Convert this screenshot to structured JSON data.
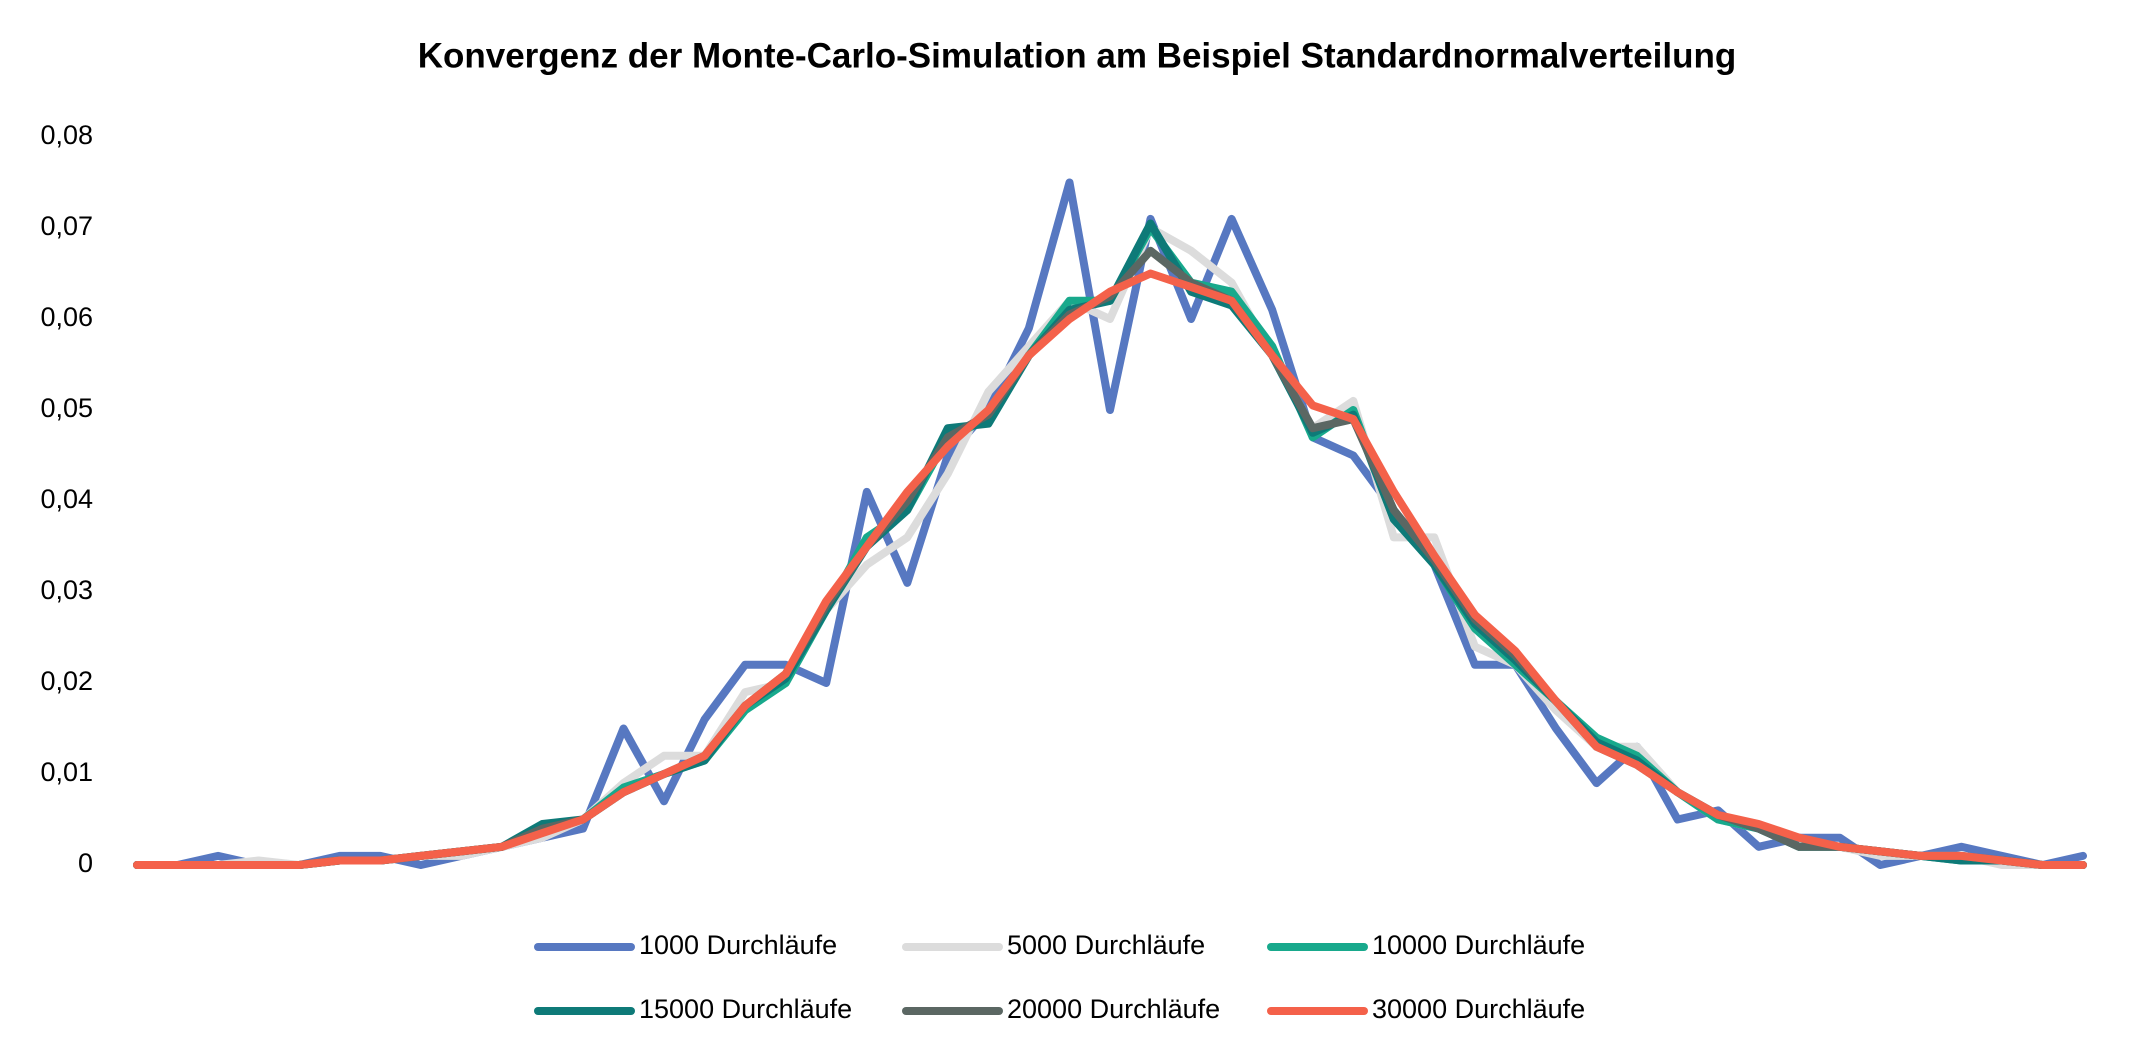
{
  "chart_data": {
    "type": "line",
    "title": "Konvergenz der Monte-Carlo-Simulation am Beispiel Standardnormalverteilung",
    "categories": [
      null,
      null,
      null,
      null,
      null,
      null,
      null,
      null,
      null,
      null,
      null,
      null,
      null,
      null,
      null,
      null,
      null,
      null,
      null,
      null,
      null,
      null,
      null,
      null,
      null,
      null,
      null,
      null,
      null,
      null,
      null,
      null,
      null,
      null,
      null,
      null,
      null,
      null,
      null,
      null,
      null,
      null,
      null,
      null,
      null,
      null,
      null,
      null,
      null
    ],
    "ylim": [
      0,
      0.08
    ],
    "yticks": [
      0,
      {
        "value": 0.01,
        "label": "0,01"
      },
      {
        "value": 0.02,
        "label": "0,02"
      },
      {
        "value": 0.03,
        "label": "0,03"
      },
      {
        "value": 0.04,
        "label": "0,04"
      },
      {
        "value": 0.05,
        "label": "0,05"
      },
      {
        "value": 0.06,
        "label": "0,06"
      },
      {
        "value": 0.07,
        "label": "0,07"
      },
      {
        "value": 0.08,
        "label": "0,08"
      }
    ],
    "grid": false,
    "legend": "bottom",
    "series": [
      {
        "name": "1000 Durchläufe",
        "color": "#5778c1",
        "values": [
          0,
          0,
          0.001,
          0,
          0,
          0.001,
          0.001,
          0,
          0.001,
          0.002,
          0.003,
          0.004,
          0.015,
          0.007,
          0.016,
          0.022,
          0.022,
          0.02,
          0.041,
          0.031,
          0.045,
          0.05,
          0.059,
          0.075,
          0.05,
          0.071,
          0.06,
          0.071,
          0.061,
          0.047,
          0.045,
          0.039,
          0.033,
          0.022,
          0.022,
          0.015,
          0.009,
          0.013,
          0.005,
          0.006,
          0.002,
          0.003,
          0.003,
          0,
          0.001,
          0.002,
          0.001,
          0,
          0.001
        ]
      },
      {
        "name": "5000 Durchläufe",
        "color": "#dcdcdc",
        "values": [
          0,
          0,
          0,
          0.0005,
          0,
          0.0005,
          0.0005,
          0.001,
          0.001,
          0.002,
          0.003,
          0.005,
          0.009,
          0.012,
          0.012,
          0.019,
          0.02,
          0.028,
          0.033,
          0.036,
          0.043,
          0.052,
          0.057,
          0.062,
          0.06,
          0.07,
          0.0675,
          0.064,
          0.056,
          0.048,
          0.051,
          0.036,
          0.036,
          0.024,
          0.022,
          0.017,
          0.013,
          0.013,
          0.008,
          0.005,
          0.004,
          0.002,
          0.002,
          0.001,
          0.001,
          0.001,
          0,
          0,
          0
        ]
      },
      {
        "name": "10000 Durchläufe",
        "color": "#18a98c",
        "values": [
          0,
          0,
          0,
          0,
          0,
          0.0005,
          0.0005,
          0.001,
          0.0015,
          0.002,
          0.004,
          0.005,
          0.0085,
          0.01,
          0.0115,
          0.017,
          0.02,
          0.028,
          0.036,
          0.039,
          0.047,
          0.049,
          0.056,
          0.062,
          0.062,
          0.07,
          0.064,
          0.063,
          0.057,
          0.047,
          0.05,
          0.038,
          0.033,
          0.026,
          0.022,
          0.018,
          0.014,
          0.012,
          0.008,
          0.005,
          0.004,
          0.002,
          0.002,
          0.0015,
          0.001,
          0.0005,
          0.0005,
          0,
          0
        ]
      },
      {
        "name": "15000 Durchläufe",
        "color": "#0e7a78",
        "values": [
          0,
          0,
          0,
          0,
          0,
          0.0005,
          0.0005,
          0.001,
          0.0015,
          0.002,
          0.0045,
          0.005,
          0.008,
          0.01,
          0.0115,
          0.0175,
          0.0205,
          0.028,
          0.035,
          0.039,
          0.048,
          0.0485,
          0.056,
          0.061,
          0.062,
          0.0705,
          0.063,
          0.0615,
          0.056,
          0.0475,
          0.0495,
          0.038,
          0.033,
          0.0265,
          0.0225,
          0.018,
          0.0135,
          0.0115,
          0.008,
          0.0055,
          0.004,
          0.002,
          0.002,
          0.0015,
          0.001,
          0.0005,
          0.0005,
          0,
          0
        ]
      },
      {
        "name": "20000 Durchläufe",
        "color": "#5b6763",
        "values": [
          0,
          0,
          0,
          0,
          0,
          0.0005,
          0.0005,
          0.001,
          0.0015,
          0.002,
          0.004,
          0.005,
          0.008,
          0.01,
          0.012,
          0.0175,
          0.021,
          0.0285,
          0.035,
          0.04,
          0.047,
          0.0495,
          0.056,
          0.0605,
          0.0625,
          0.0675,
          0.064,
          0.062,
          0.056,
          0.048,
          0.049,
          0.039,
          0.0335,
          0.027,
          0.023,
          0.018,
          0.013,
          0.011,
          0.008,
          0.0055,
          0.004,
          0.002,
          0.002,
          0.0015,
          0.001,
          0.001,
          0.0005,
          0,
          0
        ]
      },
      {
        "name": "30000 Durchläufe",
        "color": "#f4614a",
        "values": [
          0,
          0,
          0,
          0,
          0,
          0.0005,
          0.0005,
          0.001,
          0.0015,
          0.002,
          0.0035,
          0.005,
          0.008,
          0.01,
          0.012,
          0.0175,
          0.021,
          0.029,
          0.035,
          0.041,
          0.046,
          0.05,
          0.056,
          0.06,
          0.063,
          0.065,
          0.0635,
          0.062,
          0.056,
          0.0505,
          0.049,
          0.041,
          0.034,
          0.0275,
          0.0235,
          0.018,
          0.013,
          0.011,
          0.008,
          0.0055,
          0.0045,
          0.003,
          0.002,
          0.0015,
          0.001,
          0.001,
          0.0005,
          0,
          0
        ]
      }
    ]
  }
}
